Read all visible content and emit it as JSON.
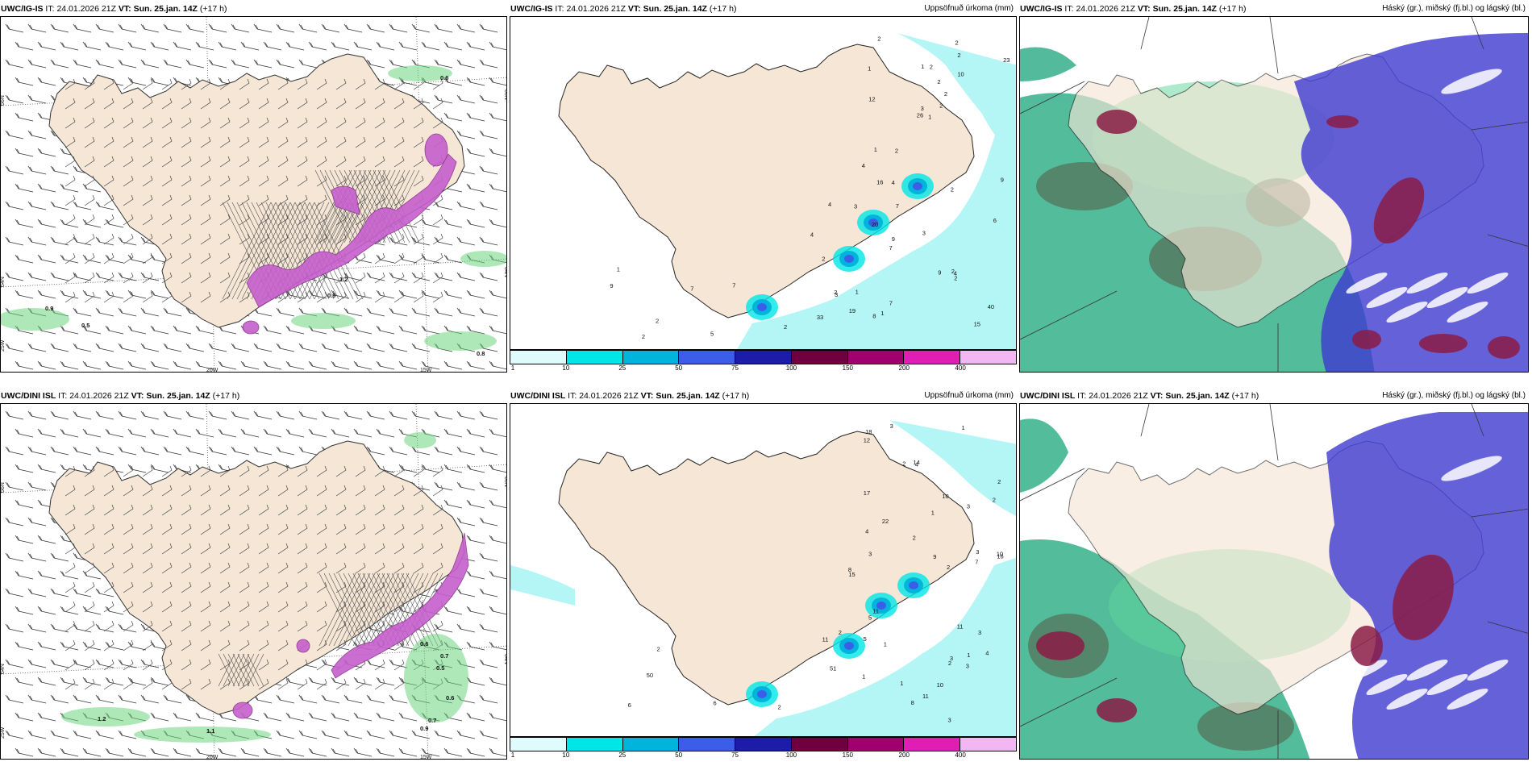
{
  "panels": [
    {
      "id": "p11",
      "model": "UWC/IG-IS",
      "it_label": "IT:",
      "it": "24.01.2026 21Z",
      "vt_label": "VT:",
      "vt": "Sun. 25.jan. 14Z",
      "lead": "(+17 h)",
      "right_title": "",
      "labels": [
        "0.9",
        "0.5",
        "0.9",
        "1.2",
        "0.8",
        "0.6"
      ],
      "axis_labels": [
        "66N",
        "64N",
        "25W",
        "20W",
        "15W",
        "66N",
        "64N"
      ]
    },
    {
      "id": "p12",
      "model": "UWC/IG-IS",
      "it_label": "IT:",
      "it": "24.01.2026 21Z",
      "vt_label": "VT:",
      "vt": "Sun. 25.jan. 14Z",
      "lead": "(+17 h)",
      "right_title": "Uppsöfnuð úrkoma (mm)",
      "numbers": [
        "1",
        "1",
        "3",
        "4",
        "2",
        "2",
        "2",
        "2",
        "2",
        "2",
        "2",
        "9",
        "12",
        "23",
        "26",
        "10",
        "16",
        "1",
        "2",
        "1",
        "20",
        "33",
        "19",
        "7",
        "3",
        "4",
        "4",
        "4",
        "4",
        "9",
        "6",
        "7",
        "7",
        "9",
        "3",
        "2",
        "1",
        "15",
        "40",
        "2",
        "2",
        "7",
        "7",
        "8",
        "5",
        "9",
        "2",
        "2",
        "2",
        "3",
        "2",
        "2",
        "1",
        "1"
      ]
    },
    {
      "id": "p13",
      "model": "UWC/IG-IS",
      "it_label": "IT:",
      "it": "24.01.2026 21Z",
      "vt_label": "VT:",
      "vt": "Sun. 25.jan. 14Z",
      "lead": "(+17 h)",
      "right_title": "Háský (gr.), miðský (fj.bl.) og lágský (bl.)"
    },
    {
      "id": "p21",
      "model": "UWC/DINI ISL",
      "it_label": "IT:",
      "it": "24.01.2026 21Z",
      "vt_label": "VT:",
      "vt": "Sun. 25.jan. 14Z",
      "lead": "(+17 h)",
      "right_title": "",
      "labels": [
        "1.2",
        "1.1",
        "0.7",
        "0.5",
        "0.6",
        "0.7",
        "0.9",
        "0.6"
      ],
      "axis_labels": [
        "66N",
        "64N",
        "25W",
        "20W",
        "15W",
        "66N",
        "64N"
      ]
    },
    {
      "id": "p22",
      "model": "UWC/DINI ISL",
      "it_label": "IT:",
      "it": "24.01.2026 21Z",
      "vt_label": "VT:",
      "vt": "Sun. 25.jan. 14Z",
      "lead": "(+17 h)",
      "right_title": "Uppsöfnuð úrkoma (mm)",
      "numbers": [
        "3",
        "2",
        "3",
        "3",
        "4",
        "3",
        "4",
        "1",
        "2",
        "2",
        "12",
        "17",
        "18",
        "10",
        "2",
        "2",
        "1",
        "10",
        "14",
        "22",
        "16",
        "7",
        "5",
        "4",
        "9",
        "8",
        "3",
        "11",
        "15",
        "11",
        "8",
        "10",
        "11",
        "5",
        "3",
        "3",
        "2",
        "2",
        "1",
        "51",
        "1",
        "1",
        "3",
        "2",
        "11",
        "6",
        "6",
        "2",
        "1",
        "50"
      ]
    },
    {
      "id": "p23",
      "model": "UWC/DINI ISL",
      "it_label": "IT:",
      "it": "24.01.2026 21Z",
      "vt_label": "VT:",
      "vt": "Sun. 25.jan. 14Z",
      "lead": "(+17 h)",
      "right_title": "Háský (gr.), miðský (fj.bl.) og lágský (bl.)"
    }
  ],
  "colorbar": {
    "colors": [
      "#e0fbfb",
      "#00e6e6",
      "#00b4dc",
      "#3a5ee8",
      "#1c1ca8",
      "#6e0040",
      "#a0006e",
      "#e01eb4",
      "#f2b6f2"
    ],
    "ticks": [
      "1",
      "10",
      "25",
      "50",
      "75",
      "100",
      "150",
      "200",
      "400"
    ]
  },
  "colors": {
    "land": "#f5e6d6",
    "sea_precip": "#b4f5f5",
    "snow_pink": "#d77ad7",
    "green_precip": "#5bd16e",
    "high_cloud": "#8b1c45",
    "mid_cloud": "#3e3ad0",
    "low_cloud": "#1aa57a"
  }
}
